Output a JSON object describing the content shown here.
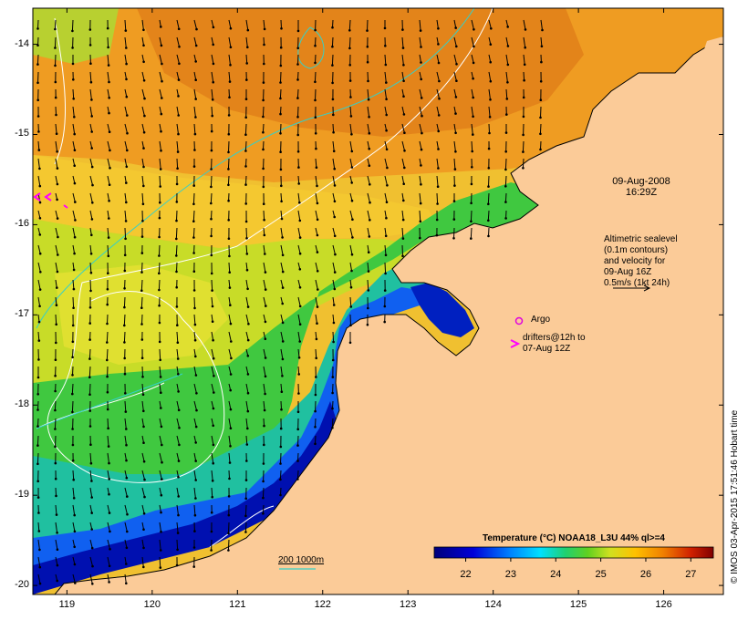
{
  "map": {
    "lon_range": [
      118.6,
      126.7
    ],
    "lat_range": [
      -20.1,
      -13.6
    ],
    "y_ticks": [
      -14,
      -15,
      -16,
      -17,
      -18,
      -19,
      -20
    ],
    "x_ticks": [
      119,
      120,
      121,
      122,
      123,
      124,
      125,
      126
    ],
    "y_tick_labels": [
      "-14",
      "-15",
      "-16",
      "-17",
      "-18",
      "-19",
      "-20"
    ],
    "x_tick_labels": [
      "119",
      "120",
      "121",
      "122",
      "123",
      "124",
      "125",
      "126"
    ],
    "colors": {
      "land": "#fbcb98",
      "contour_sealevel": "#ffffff",
      "contour_bathy": "#35d0c8",
      "arrows": "#000000",
      "drifter": "#ff00ff",
      "argo": "#e000e0"
    }
  },
  "annotations": {
    "date": "09-Aug-2008",
    "time": "16:29Z",
    "altimetry_lines": [
      "Altimetric sealevel",
      "(0.1m contours)",
      "and velocity for",
      "09-Aug 16Z",
      "0.5m/s (1kt 24h)"
    ],
    "argo_label": "Argo",
    "drifter_lines": [
      "drifters@12h to",
      "07-Aug 12Z"
    ],
    "bathy_label": "200  1000m"
  },
  "colorbar": {
    "title": "Temperature (°C) NOAA18_L3U 44% ql>=4",
    "min": 21.3,
    "max": 27.5,
    "ticks": [
      "22",
      "23",
      "24",
      "25",
      "26",
      "27"
    ],
    "tick_values": [
      22,
      23,
      24,
      25,
      26,
      27
    ]
  },
  "credit": "© IMOS 03-Apr-2015 17:51:46 Hobart time"
}
